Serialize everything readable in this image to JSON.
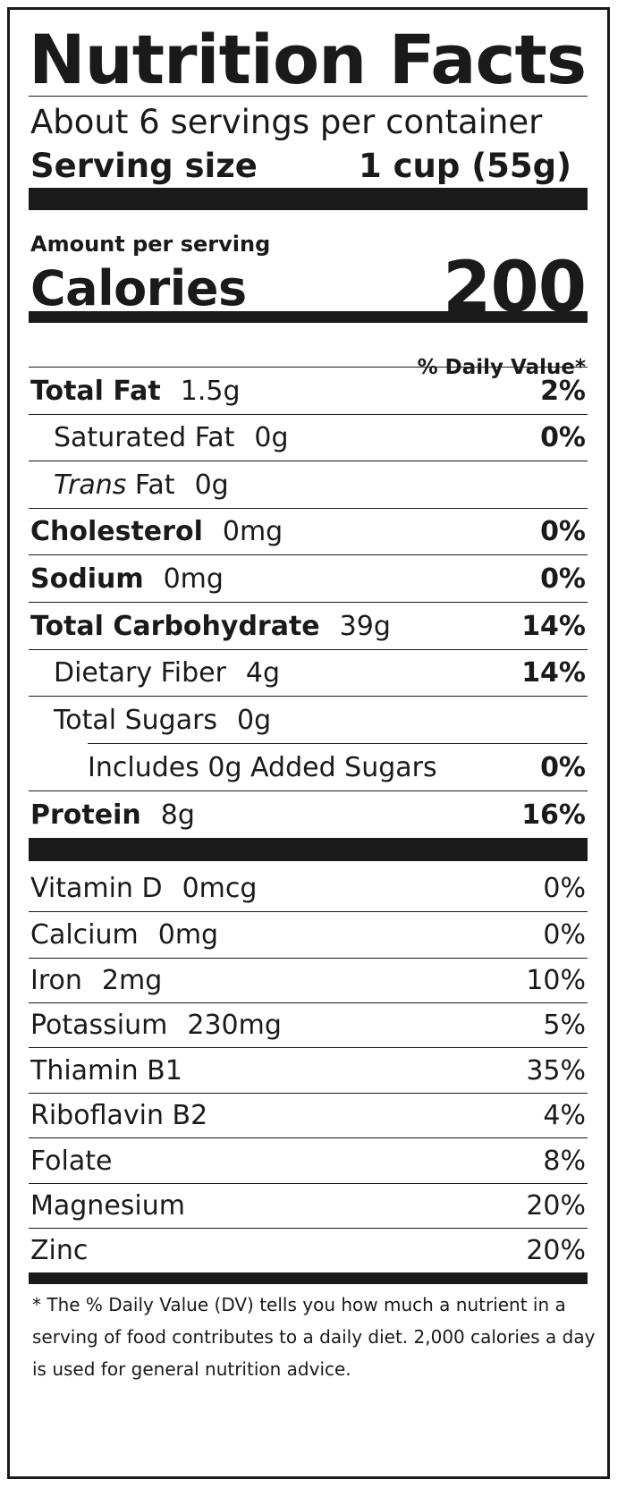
{
  "title": "Nutrition Facts",
  "servings_per_container": "About 6 servings per container",
  "serving_size_label": "Serving size",
  "serving_size_value": "1 cup (55g)",
  "amount_per_serving": "Amount per serving",
  "calories_label": "Calories",
  "calories_value": "200",
  "daily_value_header": "% Daily Value*",
  "nutrients": [
    {
      "name": "Total Fat",
      "amount": "1.5g",
      "dv": "2%"
    },
    {
      "name": "Saturated Fat",
      "amount": "0g",
      "dv": "0%"
    },
    {
      "name_italic": "Trans",
      "name": "Fat",
      "amount": "0g",
      "dv": ""
    },
    {
      "name": "Cholesterol",
      "amount": "0mg",
      "dv": "0%"
    },
    {
      "name": "Sodium",
      "amount": "0mg",
      "dv": "0%"
    },
    {
      "name": "Total Carbohydrate",
      "amount": "39g",
      "dv": "14%"
    },
    {
      "name": "Dietary Fiber",
      "amount": "4g",
      "dv": "14%"
    },
    {
      "name": "Total Sugars",
      "amount": "0g",
      "dv": ""
    },
    {
      "name": "Includes 0g Added Sugars",
      "amount": "",
      "dv": "0%"
    },
    {
      "name": "Protein",
      "amount": "8g",
      "dv": "16%"
    }
  ],
  "vitamins": [
    {
      "name": "Vitamin D",
      "amount": "0mcg",
      "dv": "0%"
    },
    {
      "name": "Calcium",
      "amount": "0mg",
      "dv": "0%"
    },
    {
      "name": "Iron",
      "amount": "2mg",
      "dv": "10%"
    },
    {
      "name": "Potassium",
      "amount": "230mg",
      "dv": "5%"
    },
    {
      "name": "Thiamin B1",
      "amount": "",
      "dv": "35%"
    },
    {
      "name": "Riboflavin B2",
      "amount": "",
      "dv": "4%"
    },
    {
      "name": "Folate",
      "amount": "",
      "dv": "8%"
    },
    {
      "name": "Magnesium",
      "amount": "",
      "dv": "20%"
    },
    {
      "name": "Zinc",
      "amount": "",
      "dv": "20%"
    }
  ],
  "footnote": [
    "* The % Daily Value (DV) tells you how much a nutrient in a",
    "serving of food contributes to a daily diet. 2,000 calories a day",
    "is used for general nutrition advice."
  ]
}
